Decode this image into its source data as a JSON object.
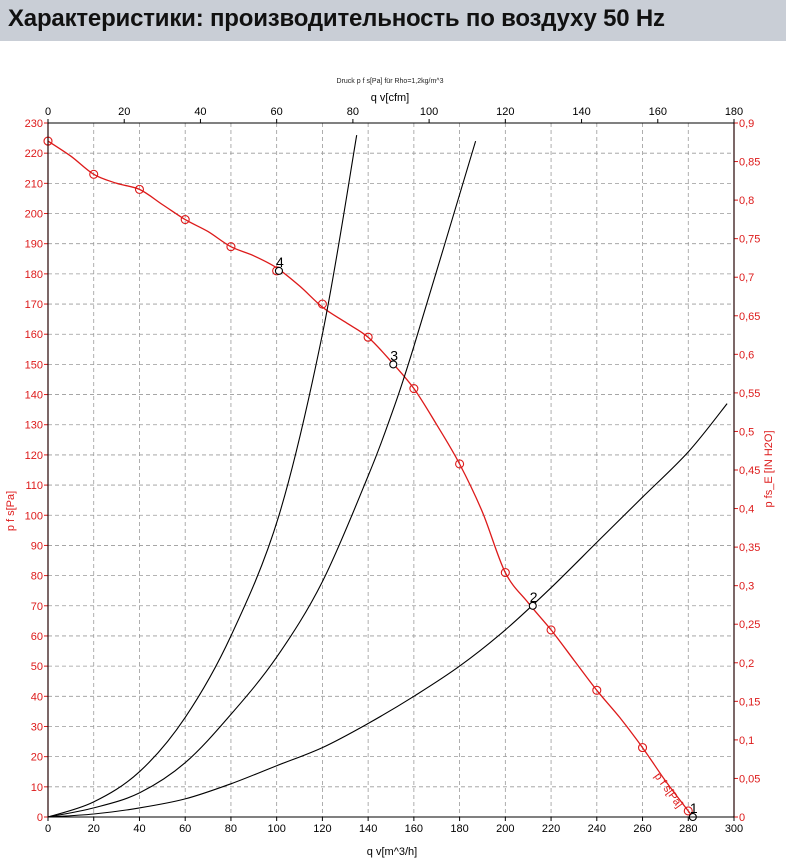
{
  "page": {
    "title": "Характеристики: производительность по воздуху 50 Hz"
  },
  "colors": {
    "header_bg": "#c9ced6",
    "fan_curve": "#dd1a1a",
    "system_curve": "#000000",
    "left_axis": "#dd1a1a",
    "right_axis": "#dd1a1a",
    "grid": "#9a9a9a"
  },
  "chart_data": {
    "type": "line",
    "caption": "Druck p f s[Pa] für Rho=1,2kg/m^3",
    "xlabel": "q v[m^3/h]",
    "x2label": "q v[cfm]",
    "ylabel": "p f s[Pa]",
    "y2label": "p fs_E [IN H2O]",
    "xlim": [
      0,
      300
    ],
    "x2lim": [
      0,
      180
    ],
    "ylim": [
      0,
      230
    ],
    "y2lim": [
      0,
      0.9
    ],
    "x_ticks": [
      "0",
      "20",
      "40",
      "60",
      "80",
      "100",
      "120",
      "140",
      "160",
      "180",
      "200",
      "220",
      "240",
      "260",
      "280",
      "300"
    ],
    "x2_ticks": [
      "0",
      "20",
      "40",
      "60",
      "80",
      "100",
      "120",
      "140",
      "160",
      "180"
    ],
    "y_ticks": [
      "0",
      "10",
      "20",
      "30",
      "40",
      "50",
      "60",
      "70",
      "80",
      "90",
      "100",
      "110",
      "120",
      "130",
      "140",
      "150",
      "160",
      "170",
      "180",
      "190",
      "200",
      "210",
      "220",
      "230"
    ],
    "y2_ticks": [
      "0",
      "0,05",
      "0,1",
      "0,15",
      "0,2",
      "0,25",
      "0,3",
      "0,35",
      "0,4",
      "0,45",
      "0,5",
      "0,55",
      "0,6",
      "0,65",
      "0,7",
      "0,75",
      "0,8",
      "0,85",
      "0,9"
    ],
    "grid": true,
    "series": [
      {
        "name": "p f s[Pa]",
        "kind": "fan",
        "values": [
          [
            0,
            224
          ],
          [
            10,
            219
          ],
          [
            20,
            213
          ],
          [
            30,
            210
          ],
          [
            40,
            208
          ],
          [
            50,
            203
          ],
          [
            60,
            198
          ],
          [
            70,
            194
          ],
          [
            80,
            189
          ],
          [
            90,
            186
          ],
          [
            100,
            182
          ],
          [
            110,
            176
          ],
          [
            120,
            169
          ],
          [
            130,
            164
          ],
          [
            140,
            159
          ],
          [
            150,
            151
          ],
          [
            160,
            142
          ],
          [
            170,
            130
          ],
          [
            180,
            117
          ],
          [
            190,
            101
          ],
          [
            200,
            81
          ],
          [
            210,
            71
          ],
          [
            220,
            62
          ],
          [
            230,
            52
          ],
          [
            240,
            42
          ],
          [
            250,
            33
          ],
          [
            260,
            23
          ],
          [
            270,
            12
          ],
          [
            280,
            2
          ],
          [
            282,
            0
          ]
        ],
        "markers": [
          [
            0,
            224
          ],
          [
            20,
            213
          ],
          [
            40,
            208
          ],
          [
            60,
            198
          ],
          [
            80,
            189
          ],
          [
            100,
            181
          ],
          [
            120,
            170
          ],
          [
            140,
            159
          ],
          [
            160,
            142
          ],
          [
            180,
            117
          ],
          [
            200,
            81
          ],
          [
            220,
            62
          ],
          [
            240,
            42
          ],
          [
            260,
            23
          ],
          [
            280,
            2
          ]
        ]
      },
      {
        "kind": "system",
        "values": [
          [
            0,
            0
          ],
          [
            20,
            5
          ],
          [
            40,
            15
          ],
          [
            60,
            33
          ],
          [
            80,
            60
          ],
          [
            101,
            100
          ],
          [
            120,
            160
          ],
          [
            135,
            226
          ]
        ]
      },
      {
        "kind": "system",
        "values": [
          [
            0,
            0
          ],
          [
            20,
            3
          ],
          [
            40,
            8
          ],
          [
            60,
            18
          ],
          [
            80,
            34
          ],
          [
            100,
            53
          ],
          [
            120,
            78
          ],
          [
            140,
            113
          ],
          [
            150,
            133
          ],
          [
            160,
            156
          ],
          [
            187,
            224
          ]
        ]
      },
      {
        "kind": "system",
        "values": [
          [
            0,
            0
          ],
          [
            20,
            1
          ],
          [
            40,
            3
          ],
          [
            60,
            6
          ],
          [
            80,
            11
          ],
          [
            100,
            17
          ],
          [
            120,
            23
          ],
          [
            140,
            31
          ],
          [
            160,
            40
          ],
          [
            180,
            50
          ],
          [
            200,
            62
          ],
          [
            220,
            76
          ],
          [
            240,
            91
          ],
          [
            260,
            106
          ],
          [
            280,
            121
          ],
          [
            297,
            137
          ]
        ]
      }
    ],
    "operating_points": [
      {
        "label": "4",
        "x": 101,
        "y": 181
      },
      {
        "label": "3",
        "x": 151,
        "y": 150
      },
      {
        "label": "2",
        "x": 212,
        "y": 70
      },
      {
        "label": "1",
        "x": 282,
        "y": 0
      }
    ],
    "annotations": [
      {
        "text": "p f s[Pa]"
      }
    ]
  }
}
